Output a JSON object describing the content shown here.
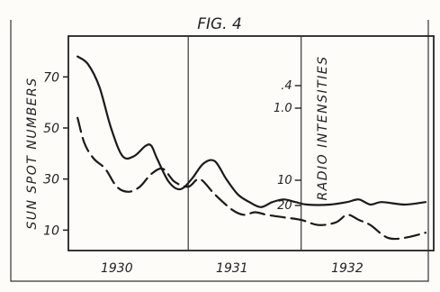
{
  "chart_data": {
    "type": "line",
    "title": "FIG. 4",
    "xlabel": "",
    "ylabel_left": "SUN SPOT NUMBERS",
    "ylabel_right": "RADIO INTENSITIES",
    "x_ticks": [
      "1930",
      "1931",
      "1932"
    ],
    "x_tick_values": [
      1930.0,
      1931.0,
      1932.0
    ],
    "xlim": [
      1929.58,
      1932.75
    ],
    "y_left_ticks": [
      "10",
      "30",
      "50",
      "70"
    ],
    "y_left_tick_values": [
      10,
      30,
      50,
      70
    ],
    "y_left_lim": [
      2,
      86
    ],
    "y_right_ticks": [
      ".4",
      "1.0",
      "10",
      "20"
    ],
    "y_right_tick_values": [
      0.4,
      1.0,
      10,
      20
    ],
    "grid": false,
    "vertical_dividers_x": [
      1930.62,
      1931.6
    ],
    "series": [
      {
        "style": "solid",
        "x": [
          1929.66,
          1929.75,
          1929.85,
          1929.95,
          1930.05,
          1930.15,
          1930.25,
          1930.3,
          1930.35,
          1930.45,
          1930.55,
          1930.65,
          1930.75,
          1930.85,
          1930.95,
          1931.05,
          1931.15,
          1931.25,
          1931.35,
          1931.45,
          1931.55,
          1931.65,
          1931.85,
          1932.0,
          1932.1,
          1932.2,
          1932.3,
          1932.5,
          1932.68
        ],
        "y": [
          78,
          75,
          66,
          50,
          39,
          39,
          43,
          43,
          38,
          29,
          26,
          30,
          36,
          37,
          30,
          24,
          21,
          19,
          21,
          22,
          21,
          20,
          20,
          21,
          22,
          20,
          21,
          20,
          21
        ]
      },
      {
        "style": "dashed",
        "x": [
          1929.66,
          1929.72,
          1929.8,
          1929.9,
          1930.0,
          1930.1,
          1930.2,
          1930.3,
          1930.4,
          1930.5,
          1930.62,
          1930.72,
          1930.85,
          1931.0,
          1931.1,
          1931.2,
          1931.3,
          1931.45,
          1931.6,
          1931.75,
          1931.9,
          1932.0,
          1932.1,
          1932.2,
          1932.35,
          1932.5,
          1932.68
        ],
        "y": [
          54,
          44,
          38,
          34,
          27,
          25,
          27,
          32,
          34,
          29,
          27,
          30,
          24,
          18,
          16,
          17,
          16,
          15,
          14,
          12,
          13,
          16,
          14,
          12,
          7,
          7,
          9
        ]
      }
    ]
  }
}
